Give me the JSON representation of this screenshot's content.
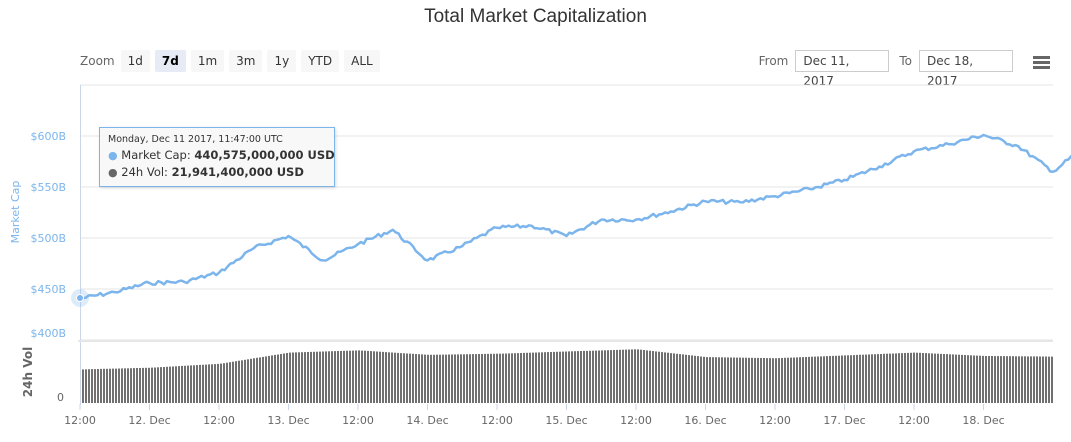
{
  "title": "Total Market Capitalization",
  "zoom": {
    "label": "Zoom",
    "buttons": [
      "1d",
      "7d",
      "1m",
      "3m",
      "1y",
      "YTD",
      "ALL"
    ],
    "active": "7d"
  },
  "range": {
    "from_label": "From",
    "from_value": "Dec 11, 2017",
    "to_label": "To",
    "to_value": "Dec 18, 2017"
  },
  "menu_icon": "hamburger-menu-icon",
  "tooltip": {
    "date": "Monday, Dec 11 2017, 11:47:00 UTC",
    "series1_label": "Market Cap:",
    "series1_value": "440,575,000,000 USD",
    "series2_label": "24h Vol:",
    "series2_value": "21,941,400,000 USD"
  },
  "colors": {
    "market_cap": "#7cb5ec",
    "volume": "#707070",
    "axis_label": "#7cb5ec",
    "grid": "#e6e6e6"
  },
  "chart_data": {
    "type": "line",
    "title": "Total Market Capitalization",
    "xlabel": "",
    "ylabel": "Market Cap",
    "ylabel_secondary": "24h Vol",
    "y_ticks": [
      "$400B",
      "$450B",
      "$500B",
      "$550B",
      "$600B"
    ],
    "ylim": [
      400,
      650
    ],
    "y2_ticks": [
      "0"
    ],
    "x_ticks": [
      "12:00",
      "12. Dec",
      "12:00",
      "13. Dec",
      "12:00",
      "14. Dec",
      "12:00",
      "15. Dec",
      "12:00",
      "16. Dec",
      "12:00",
      "17. Dec",
      "12:00",
      "18. Dec"
    ],
    "grid": true,
    "legend": "none",
    "series": [
      {
        "name": "Market Cap (B USD)",
        "x": [
          "11 Dec 12:00",
          "11 Dec 18:00",
          "12 Dec 00:00",
          "12 Dec 06:00",
          "12 Dec 12:00",
          "12 Dec 18:00",
          "13 Dec 00:00",
          "13 Dec 06:00",
          "13 Dec 12:00",
          "13 Dec 18:00",
          "14 Dec 00:00",
          "14 Dec 06:00",
          "14 Dec 12:00",
          "14 Dec 18:00",
          "15 Dec 00:00",
          "15 Dec 06:00",
          "15 Dec 12:00",
          "15 Dec 18:00",
          "16 Dec 00:00",
          "16 Dec 06:00",
          "16 Dec 12:00",
          "16 Dec 18:00",
          "17 Dec 00:00",
          "17 Dec 06:00",
          "17 Dec 12:00",
          "17 Dec 18:00",
          "18 Dec 00:00",
          "18 Dec 06:00",
          "18 Dec 12:00",
          "18 Dec 21:00"
        ],
        "values": [
          440.6,
          447,
          456,
          457,
          466,
          490,
          502,
          478,
          494,
          508,
          478,
          492,
          510,
          512,
          502,
          518,
          518,
          526,
          536,
          535,
          541,
          548,
          557,
          570,
          585,
          592,
          601,
          590,
          565,
          605
        ]
      },
      {
        "name": "24h Vol (relative)",
        "x": [
          "11 Dec 12:00",
          "12 Dec 00:00",
          "12 Dec 12:00",
          "13 Dec 00:00",
          "13 Dec 12:00",
          "14 Dec 00:00",
          "14 Dec 12:00",
          "15 Dec 00:00",
          "15 Dec 12:00",
          "16 Dec 00:00",
          "16 Dec 12:00",
          "17 Dec 00:00",
          "17 Dec 12:00",
          "18 Dec 00:00",
          "18 Dec 21:00"
        ],
        "values": [
          0.6,
          0.63,
          0.7,
          0.9,
          0.94,
          0.86,
          0.88,
          0.92,
          0.96,
          0.82,
          0.8,
          0.85,
          0.9,
          0.84,
          0.82
        ]
      }
    ]
  }
}
